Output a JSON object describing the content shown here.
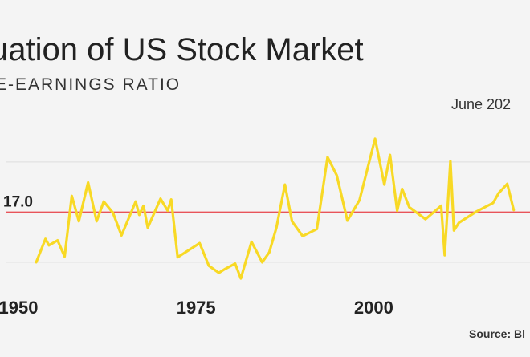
{
  "chart_data": {
    "type": "line",
    "title": "uation of US Stock Market",
    "subtitle": "E-EARNINGS RATIO",
    "date_label": "June 202",
    "source": "Source: Bl",
    "colors": {
      "line": "#f8d925",
      "reference": "#e8545a",
      "grid": "#dddddd",
      "background": "#f4f4f4"
    },
    "grid": true,
    "xlim": [
      1947.4,
      2022
    ],
    "ylim": [
      5,
      30
    ],
    "x_ticks": [
      1950,
      1975,
      2000
    ],
    "x_tick_labels": [
      "1950",
      "1975",
      "2000"
    ],
    "y_grid": [
      9.9,
      17.0,
      24.1
    ],
    "reference_line": {
      "value": 17.0,
      "label": "17.0"
    },
    "series": [
      {
        "x": [
          1952.5,
          1953.8,
          1954.3,
          1955.5,
          1956.5,
          1957.5,
          1958.5,
          1959.8,
          1961,
          1962,
          1963.3,
          1964.5,
          1966.5,
          1967,
          1967.6,
          1968.2,
          1970,
          1971,
          1971.5,
          1972.4,
          1975.5,
          1976.8,
          1978.2,
          1979,
          1980.5,
          1981.3,
          1982.8,
          1984.3,
          1985.3,
          1986.3,
          1987.5,
          1988.5,
          1990,
          1992,
          1993.5,
          1994.8,
          1996.3,
          1998,
          2000.2,
          2001.5,
          2002.3,
          2003.3,
          2004,
          2005,
          2007.3,
          2009.5,
          2010,
          2010.8,
          2011.3,
          2012,
          2014.5,
          2016.8,
          2017.6,
          2018.8,
          2019.7
        ],
        "y": [
          9.9,
          13.2,
          12.3,
          13.0,
          10.7,
          19.3,
          15.7,
          21.2,
          15.7,
          18.5,
          16.9,
          13.7,
          18.5,
          16.6,
          17.9,
          14.8,
          18.9,
          17.2,
          18.8,
          10.6,
          12.6,
          9.4,
          8.4,
          8.9,
          9.7,
          7.6,
          12.8,
          9.9,
          11.3,
          14.8,
          20.9,
          15.7,
          13.6,
          14.6,
          24.8,
          22.2,
          15.8,
          18.7,
          27.4,
          20.9,
          25.1,
          17.2,
          20.3,
          17.7,
          16.0,
          17.9,
          10.9,
          24.2,
          14.4,
          15.5,
          17.1,
          18.3,
          19.7,
          21.0,
          17.3
        ]
      }
    ]
  }
}
